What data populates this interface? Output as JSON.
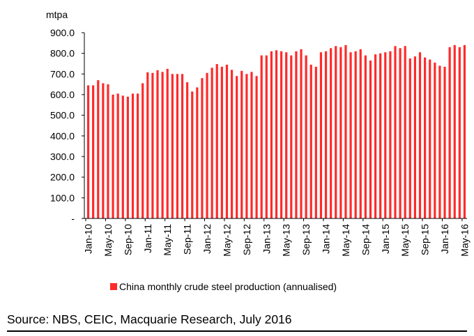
{
  "chart_data": {
    "type": "bar",
    "title": "",
    "ylabel": "mtpa",
    "xlabel": "",
    "ylim": [
      0,
      900
    ],
    "y_ticks": [
      {
        "value": 0,
        "label": "-"
      },
      {
        "value": 100,
        "label": "100.0"
      },
      {
        "value": 200,
        "label": "200.0"
      },
      {
        "value": 300,
        "label": "300.0"
      },
      {
        "value": 400,
        "label": "400.0"
      },
      {
        "value": 500,
        "label": "500.0"
      },
      {
        "value": 600,
        "label": "600.0"
      },
      {
        "value": 700,
        "label": "700.0"
      },
      {
        "value": 800,
        "label": "800.0"
      },
      {
        "value": 900,
        "label": "900.0"
      }
    ],
    "x_tick_labels": [
      {
        "index": 0,
        "label": "Jan-10"
      },
      {
        "index": 4,
        "label": "May-10"
      },
      {
        "index": 8,
        "label": "Sep-10"
      },
      {
        "index": 12,
        "label": "Jan-11"
      },
      {
        "index": 16,
        "label": "May-11"
      },
      {
        "index": 20,
        "label": "Sep-11"
      },
      {
        "index": 24,
        "label": "Jan-12"
      },
      {
        "index": 28,
        "label": "May-12"
      },
      {
        "index": 32,
        "label": "Sep-12"
      },
      {
        "index": 36,
        "label": "Jan-13"
      },
      {
        "index": 40,
        "label": "May-13"
      },
      {
        "index": 44,
        "label": "Sep-13"
      },
      {
        "index": 48,
        "label": "Jan-14"
      },
      {
        "index": 52,
        "label": "May-14"
      },
      {
        "index": 56,
        "label": "Sep-14"
      },
      {
        "index": 60,
        "label": "Jan-15"
      },
      {
        "index": 64,
        "label": "May-15"
      },
      {
        "index": 68,
        "label": "Sep-15"
      },
      {
        "index": 72,
        "label": "Jan-16"
      },
      {
        "index": 76,
        "label": "May-16"
      }
    ],
    "legend_position": "bottom",
    "grid": false,
    "bar_color": "#ff2a2a",
    "series": [
      {
        "name": "China monthly crude steel production (annualised)",
        "values": [
          645,
          645,
          670,
          655,
          650,
          600,
          605,
          595,
          590,
          605,
          605,
          655,
          708,
          705,
          718,
          710,
          725,
          700,
          700,
          700,
          660,
          615,
          635,
          680,
          705,
          730,
          748,
          735,
          745,
          720,
          690,
          715,
          700,
          710,
          690,
          790,
          790,
          810,
          815,
          810,
          805,
          790,
          810,
          820,
          790,
          745,
          735,
          805,
          810,
          825,
          835,
          830,
          840,
          805,
          810,
          820,
          790,
          765,
          795,
          800,
          805,
          810,
          835,
          825,
          835,
          775,
          785,
          805,
          780,
          770,
          755,
          740,
          735,
          830,
          840,
          830,
          840
        ]
      }
    ]
  },
  "source_text": "Source: NBS, CEIC, Macquarie Research, July 2016"
}
